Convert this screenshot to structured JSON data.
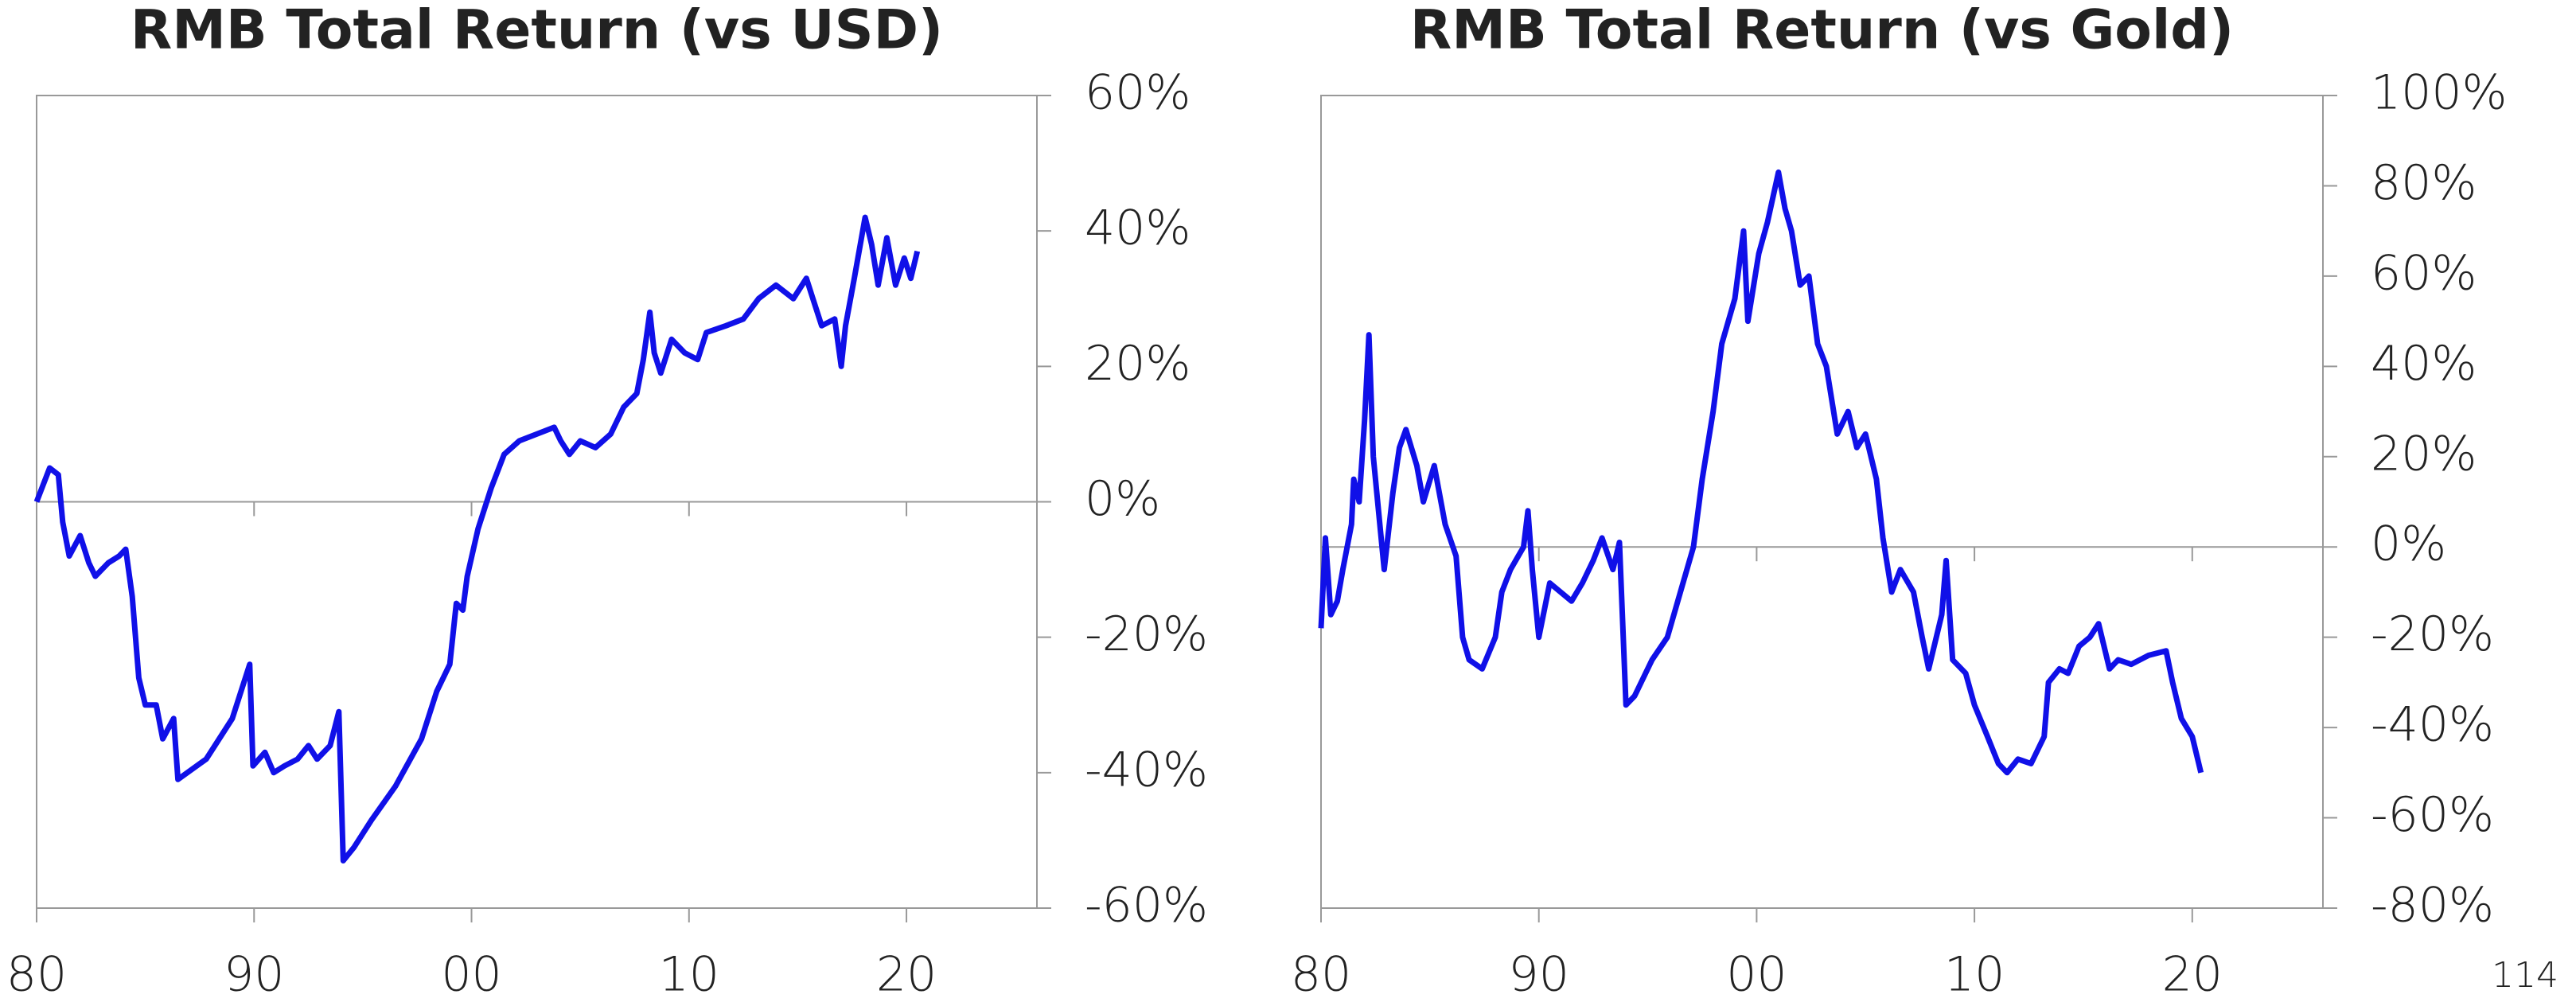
{
  "chart_data": [
    {
      "type": "line",
      "title": "RMB Total Return (vs USD)",
      "x": [
        1980,
        1980.6,
        1981,
        1981.2,
        1981.5,
        1982,
        1982.4,
        1982.7,
        1983.3,
        1983.8,
        1984.1,
        1984.4,
        1984.7,
        1985,
        1985.5,
        1985.8,
        1986.3,
        1986.5,
        1987.8,
        1989,
        1989.8,
        1989.95,
        1990.5,
        1990.9,
        1991.4,
        1992,
        1992.5,
        1992.9,
        1993.5,
        1993.9,
        1994.1,
        1994.6,
        1995.4,
        1996.5,
        1997.7,
        1998.4,
        1999,
        1999.3,
        1999.6,
        1999.8,
        2000.3,
        2000.9,
        2001.5,
        2002.2,
        2003,
        2003.8,
        2004.1,
        2004.5,
        2005,
        2005.7,
        2006.4,
        2007,
        2007.6,
        2007.9,
        2008.2,
        2008.4,
        2008.7,
        2009.2,
        2009.8,
        2010.4,
        2010.8,
        2011.7,
        2012.5,
        2013.2,
        2014,
        2014.8,
        2015.4,
        2015.7,
        2016.1,
        2016.7,
        2017,
        2017.2,
        2017.6,
        2018.1,
        2018.4,
        2018.7,
        2019.1,
        2019.5,
        2019.9,
        2020.2,
        2020.5
      ],
      "series": [
        {
          "color": "#1010e8",
          "values": [
            0,
            5,
            4,
            -3,
            -8,
            -5,
            -9,
            -11,
            -9,
            -8,
            -7,
            -14,
            -26,
            -30,
            -30,
            -35,
            -32,
            -41,
            -38,
            -32,
            -24,
            -39,
            -37,
            -40,
            -39,
            -38,
            -36,
            -38,
            -36,
            -31,
            -53,
            -51,
            -47,
            -42,
            -35,
            -28,
            -24,
            -15,
            -16,
            -11,
            -4,
            2,
            7,
            9,
            10,
            11,
            9,
            7,
            9,
            8,
            10,
            14,
            16,
            21,
            28,
            22,
            19,
            24,
            22,
            21,
            25,
            26,
            27,
            30,
            32,
            30,
            33,
            30,
            26,
            27,
            20,
            26,
            33,
            42,
            38,
            32,
            39,
            32,
            36,
            33,
            37
          ]
        }
      ],
      "xlim": [
        1980,
        2026
      ],
      "xticks": [
        {
          "value": 1980,
          "label": "80"
        },
        {
          "value": 1990,
          "label": "90"
        },
        {
          "value": 2000,
          "label": "00"
        },
        {
          "value": 2010,
          "label": "10"
        },
        {
          "value": 2020,
          "label": "20"
        }
      ],
      "ylim": [
        -60,
        60
      ],
      "yticks": [
        {
          "value": -60,
          "label": "-60%"
        },
        {
          "value": -40,
          "label": "-40%"
        },
        {
          "value": -20,
          "label": "-20%"
        },
        {
          "value": 0,
          "label": "0%"
        },
        {
          "value": 20,
          "label": "20%"
        },
        {
          "value": 40,
          "label": "40%"
        },
        {
          "value": 60,
          "label": "60%"
        }
      ]
    },
    {
      "type": "line",
      "title": "RMB Total Return (vs Gold)",
      "x": [
        1980,
        1980.2,
        1980.45,
        1980.75,
        1981,
        1981.4,
        1981.5,
        1981.75,
        1982,
        1982.2,
        1982.4,
        1982.7,
        1982.9,
        1983.3,
        1983.6,
        1983.9,
        1984.4,
        1984.7,
        1985.2,
        1985.7,
        1986.2,
        1986.5,
        1986.8,
        1987.4,
        1988,
        1988.3,
        1988.7,
        1989.3,
        1989.5,
        1989.7,
        1990,
        1990.5,
        1991,
        1991.5,
        1992,
        1992.5,
        1992.9,
        1993.4,
        1993.7,
        1994,
        1994.4,
        1995.2,
        1995.9,
        1996.5,
        1997.1,
        1997.5,
        1998,
        1998.4,
        1999,
        1999.4,
        1999.6,
        2000.1,
        2000.5,
        2001,
        2001.3,
        2001.6,
        2002,
        2002.4,
        2002.8,
        2003.2,
        2003.7,
        2004.2,
        2004.6,
        2005,
        2005.5,
        2005.8,
        2006.2,
        2006.6,
        2007.2,
        2007.6,
        2007.9,
        2008.5,
        2008.7,
        2009,
        2009.6,
        2010,
        2010.6,
        2011.1,
        2011.5,
        2012,
        2012.6,
        2013.2,
        2013.4,
        2013.9,
        2014.3,
        2014.8,
        2015.3,
        2015.7,
        2016.2,
        2016.6,
        2017.2,
        2018,
        2018.8,
        2019.1,
        2019.5,
        2020,
        2020.4
      ],
      "series": [
        {
          "color": "#1010e8",
          "values": [
            -18,
            2,
            -15,
            -12,
            -5,
            5,
            15,
            10,
            28,
            47,
            20,
            5,
            -5,
            12,
            22,
            26,
            18,
            10,
            18,
            5,
            -2,
            -20,
            -25,
            -27,
            -20,
            -10,
            -5,
            0,
            8,
            -5,
            -20,
            -8,
            -10,
            -12,
            -8,
            -3,
            2,
            -5,
            1,
            -35,
            -33,
            -25,
            -20,
            -10,
            0,
            15,
            30,
            45,
            55,
            70,
            50,
            65,
            72,
            83,
            75,
            70,
            58,
            60,
            45,
            40,
            25,
            30,
            22,
            25,
            15,
            2,
            -10,
            -5,
            -10,
            -20,
            -27,
            -15,
            -3,
            -25,
            -28,
            -35,
            -42,
            -48,
            -50,
            -47,
            -48,
            -42,
            -30,
            -27,
            -28,
            -22,
            -20,
            -17,
            -27,
            -25,
            -26,
            -24,
            -23,
            -30,
            -38,
            -42,
            -50
          ]
        }
      ],
      "xlim": [
        1980,
        2026
      ],
      "xticks": [
        {
          "value": 1980,
          "label": "80"
        },
        {
          "value": 1990,
          "label": "90"
        },
        {
          "value": 2000,
          "label": "00"
        },
        {
          "value": 2010,
          "label": "10"
        },
        {
          "value": 2020,
          "label": "20"
        }
      ],
      "ylim": [
        -80,
        100
      ],
      "yticks": [
        {
          "value": -80,
          "label": "-80%"
        },
        {
          "value": -60,
          "label": "-60%"
        },
        {
          "value": -40,
          "label": "-40%"
        },
        {
          "value": -20,
          "label": "-20%"
        },
        {
          "value": 0,
          "label": "0%"
        },
        {
          "value": 20,
          "label": "20%"
        },
        {
          "value": 40,
          "label": "40%"
        },
        {
          "value": 60,
          "label": "60%"
        },
        {
          "value": 80,
          "label": "80%"
        },
        {
          "value": 100,
          "label": "100%"
        }
      ]
    }
  ],
  "page_number": "114"
}
